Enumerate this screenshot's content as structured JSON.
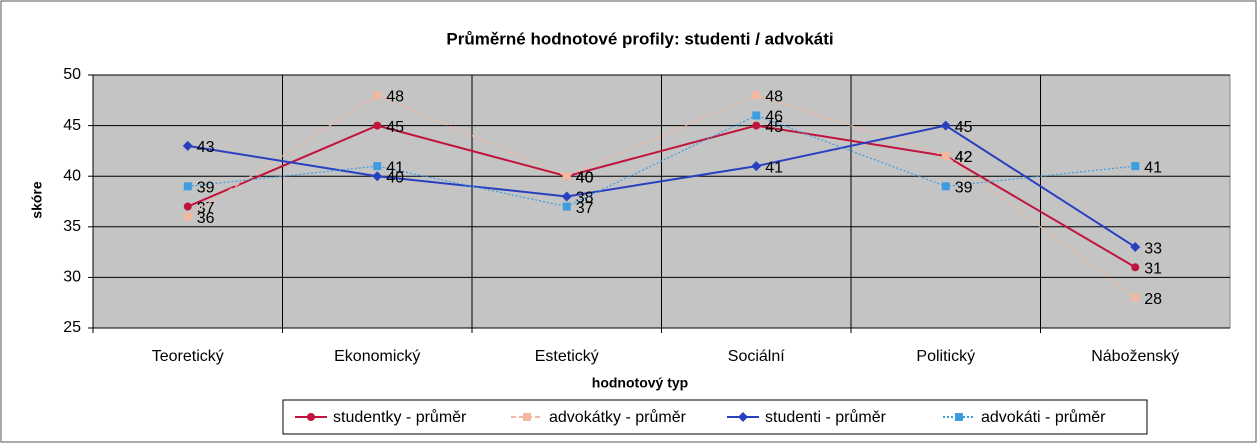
{
  "chart_data": {
    "type": "line",
    "title": "Průměrné hodnotové profily: studenti / advokáti",
    "x_label": "hodnotový typ",
    "y_label": "skóre",
    "categories": [
      "Teoretický",
      "Ekonomický",
      "Estetický",
      "Sociální",
      "Politický",
      "Náboženský"
    ],
    "series": [
      {
        "name": "studentky - průměr",
        "color": "#c0143c",
        "marker": "circle",
        "dash": "solid",
        "values": [
          37,
          45,
          40,
          45,
          42,
          31
        ]
      },
      {
        "name": "advokátky - průměr",
        "color": "#f2b8a0",
        "marker": "square",
        "dash": "dashed",
        "values": [
          36,
          48,
          40,
          48,
          42,
          28
        ]
      },
      {
        "name": "studenti - průměr",
        "color": "#2840c0",
        "marker": "diamond",
        "dash": "solid",
        "values": [
          43,
          40,
          38,
          41,
          45,
          33
        ]
      },
      {
        "name": "advokáti - průměr",
        "color": "#3c9ee0",
        "marker": "square",
        "dash": "dotted",
        "values": [
          39,
          41,
          37,
          46,
          39,
          41
        ]
      }
    ],
    "ylim": [
      25,
      50
    ],
    "yticks": [
      25,
      30,
      35,
      40,
      45,
      50
    ],
    "grid": true,
    "legend": "bottom",
    "plot_background": "#c4c4c4"
  }
}
